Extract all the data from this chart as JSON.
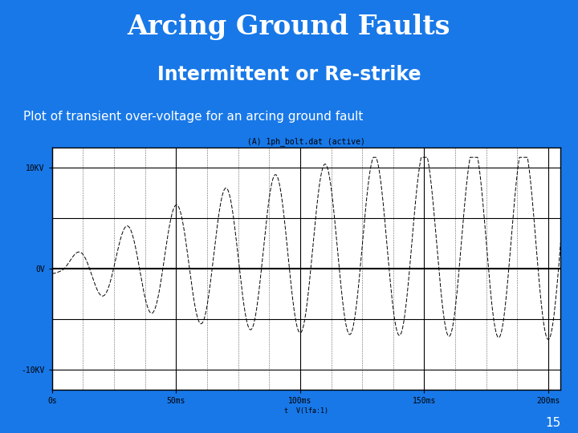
{
  "title1": "Arcing Ground Faults",
  "title2": "Intermittent or Re-strike",
  "subtitle": "Plot of transient over-voltage for an arcing ground fault",
  "plot_title": "(A) 1ph_bolt.dat (active)",
  "xlabel_label": "t  V(lfa:1)",
  "background_color": "#1878E8",
  "slide_bg": "#1878E8",
  "page_number": "15",
  "yticks": [
    -10000,
    0,
    10000
  ],
  "ytick_labels": [
    "-10KV",
    "0V",
    "10KV"
  ],
  "xtick_labels": [
    "0s",
    "50ms",
    "100ms",
    "150ms",
    "200ms"
  ],
  "xtick_values": [
    0,
    0.05,
    0.1,
    0.15,
    0.2
  ],
  "ylim": [
    -12000,
    12000
  ],
  "xlim": [
    0,
    0.205
  ]
}
